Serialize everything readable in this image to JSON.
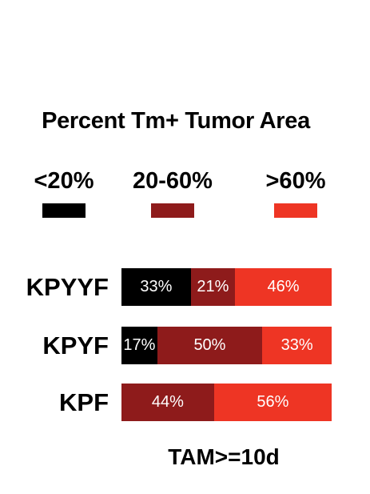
{
  "chart_data": {
    "type": "bar",
    "orientation": "horizontal",
    "stacked": true,
    "title": "Percent Tm+ Tumor Area",
    "xlabel": "TAM>=10d",
    "ylabel": "",
    "xlim": [
      0,
      100
    ],
    "categories": [
      "KPYYF",
      "KPYF",
      "KPF"
    ],
    "series": [
      {
        "name": "<20%",
        "color": "#000000",
        "values": [
          33,
          17,
          0
        ],
        "labels": [
          "33%",
          "17%",
          ""
        ]
      },
      {
        "name": "20-60%",
        "color": "#8e1b1b",
        "values": [
          21,
          50,
          44
        ],
        "labels": [
          "21%",
          "50%",
          "44%"
        ]
      },
      {
        "name": ">60%",
        "color": "#ee3524",
        "values": [
          46,
          33,
          56
        ],
        "labels": [
          "46%",
          "33%",
          "56%"
        ]
      }
    ],
    "legend_position": "top",
    "grid": false
  }
}
